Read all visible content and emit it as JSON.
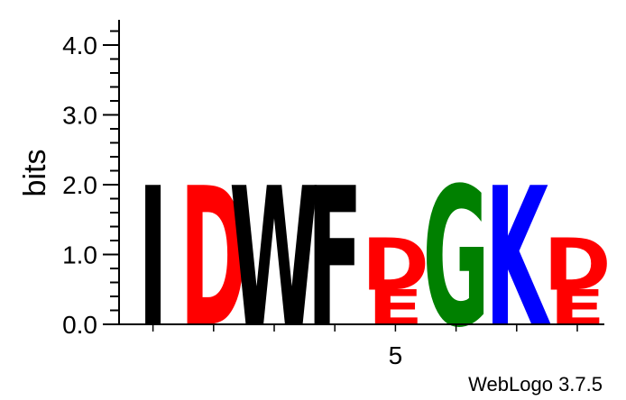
{
  "chart_data": {
    "type": "sequence-logo",
    "ylabel": "bits",
    "ylim": [
      0,
      4.3
    ],
    "yticks": [
      "0.0",
      "1.0",
      "2.0",
      "3.0",
      "4.0"
    ],
    "xticks": [
      {
        "position": 5,
        "label": "5"
      }
    ],
    "positions": [
      {
        "index": 1,
        "stack": [
          {
            "letter": "I",
            "bits": 2.0,
            "color": "#000000"
          }
        ]
      },
      {
        "index": 2,
        "stack": [
          {
            "letter": "D",
            "bits": 2.0,
            "color": "#ff0000"
          }
        ]
      },
      {
        "index": 3,
        "stack": [
          {
            "letter": "W",
            "bits": 2.0,
            "color": "#000000"
          }
        ]
      },
      {
        "index": 4,
        "stack": [
          {
            "letter": "F",
            "bits": 2.0,
            "color": "#000000"
          }
        ]
      },
      {
        "index": 5,
        "stack": [
          {
            "letter": "E",
            "bits": 0.5,
            "color": "#ff0000"
          },
          {
            "letter": "D",
            "bits": 0.75,
            "color": "#ff0000"
          }
        ]
      },
      {
        "index": 6,
        "stack": [
          {
            "letter": "G",
            "bits": 2.0,
            "color": "#008000"
          }
        ]
      },
      {
        "index": 7,
        "stack": [
          {
            "letter": "K",
            "bits": 2.0,
            "color": "#0000ff"
          }
        ]
      },
      {
        "index": 8,
        "stack": [
          {
            "letter": "E",
            "bits": 0.5,
            "color": "#ff0000"
          },
          {
            "letter": "D",
            "bits": 0.75,
            "color": "#ff0000"
          }
        ]
      }
    ]
  },
  "credit": "WebLogo 3.7.5"
}
